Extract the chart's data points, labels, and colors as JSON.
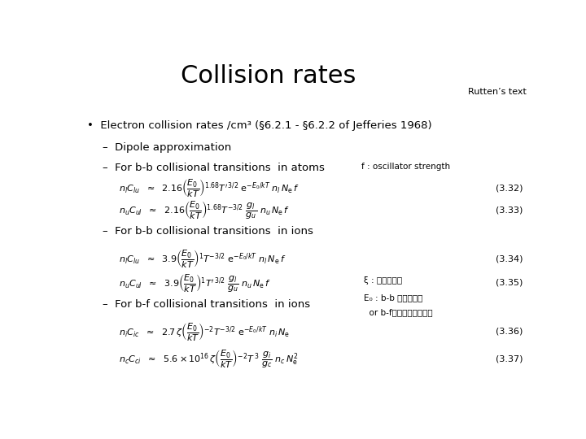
{
  "bg_color": "#ffffff",
  "title": "Collision rates",
  "title_fontsize": 22,
  "rutten_text": "Rutten’s text",
  "rutten_fontsize": 8,
  "bullet1_text": "•  Electron collision rates /cm³ (§6.2.1 - §6.2.2 of Jefferies 1968)",
  "bullet1_fontsize": 9.5,
  "dash1_text": "–  Dipole approximation",
  "dash_fontsize": 9.5,
  "dash2_text": "–  For b-b collisional transitions  in atoms",
  "fosc_text": "f : oscillator strength",
  "fosc_fontsize": 7.5,
  "eq332_num": "(3.32)",
  "eq333_num": "(3.33)",
  "dash3_text": "–  For b-b collisional transitions  in ions",
  "eq334_num": "(3.34)",
  "eq335_num": "(3.35)",
  "xi_text": "ξ : 外殼電子数",
  "e0_text": "E₀ : b-b エネルギー",
  "orbf_text": "  or b-fのエネルギー間値",
  "dash4_text": "–  For b-f collisional transitions  in ions",
  "eq336_num": "(3.36)",
  "eq337_num": "(3.37)",
  "eq_fontsize": 8,
  "annot_fontsize": 7.5,
  "num_fontsize": 8
}
